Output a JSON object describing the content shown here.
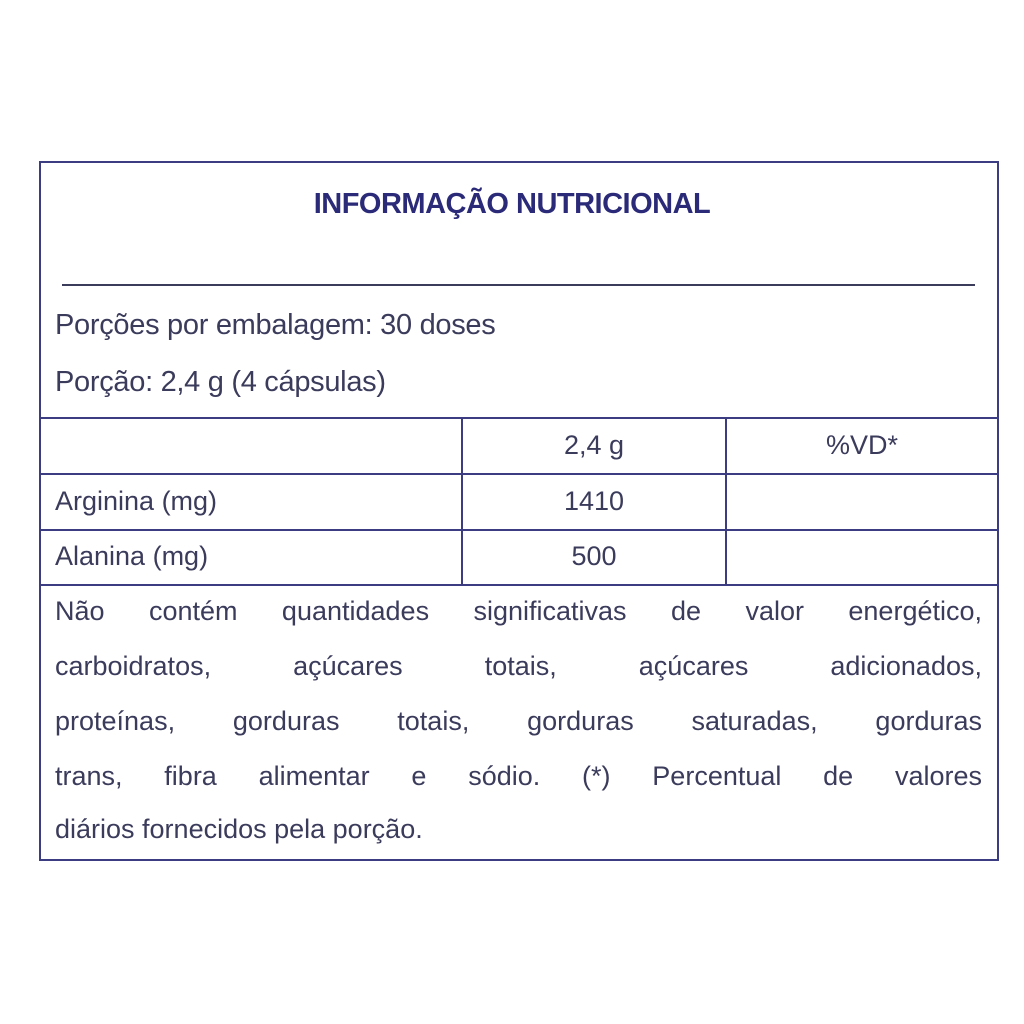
{
  "title": "INFORMAÇÃO NUTRICIONAL",
  "servings_per_package": "Porções por embalagem: 30 doses",
  "serving_size": "Porção: 2,4 g (4 cápsulas)",
  "table": {
    "headers": [
      "",
      "2,4 g",
      "%VD*"
    ],
    "rows": [
      {
        "name": "Arginina (mg)",
        "amount": "1410",
        "dv": ""
      },
      {
        "name": "Alanina (mg)",
        "amount": "500",
        "dv": ""
      }
    ]
  },
  "footnote_lines": [
    "Não contém quantidades significativas de valor energético,",
    "carboidratos, açúcares totais, açúcares adicionados,",
    "proteínas, gorduras totais, gorduras saturadas, gorduras",
    "trans, fibra alimentar e sódio. (*) Percentual de valores",
    "diários fornecidos pela porção."
  ],
  "colors": {
    "border": "#3c3c82",
    "title": "#2b2a78",
    "text": "#3b3b5c"
  }
}
